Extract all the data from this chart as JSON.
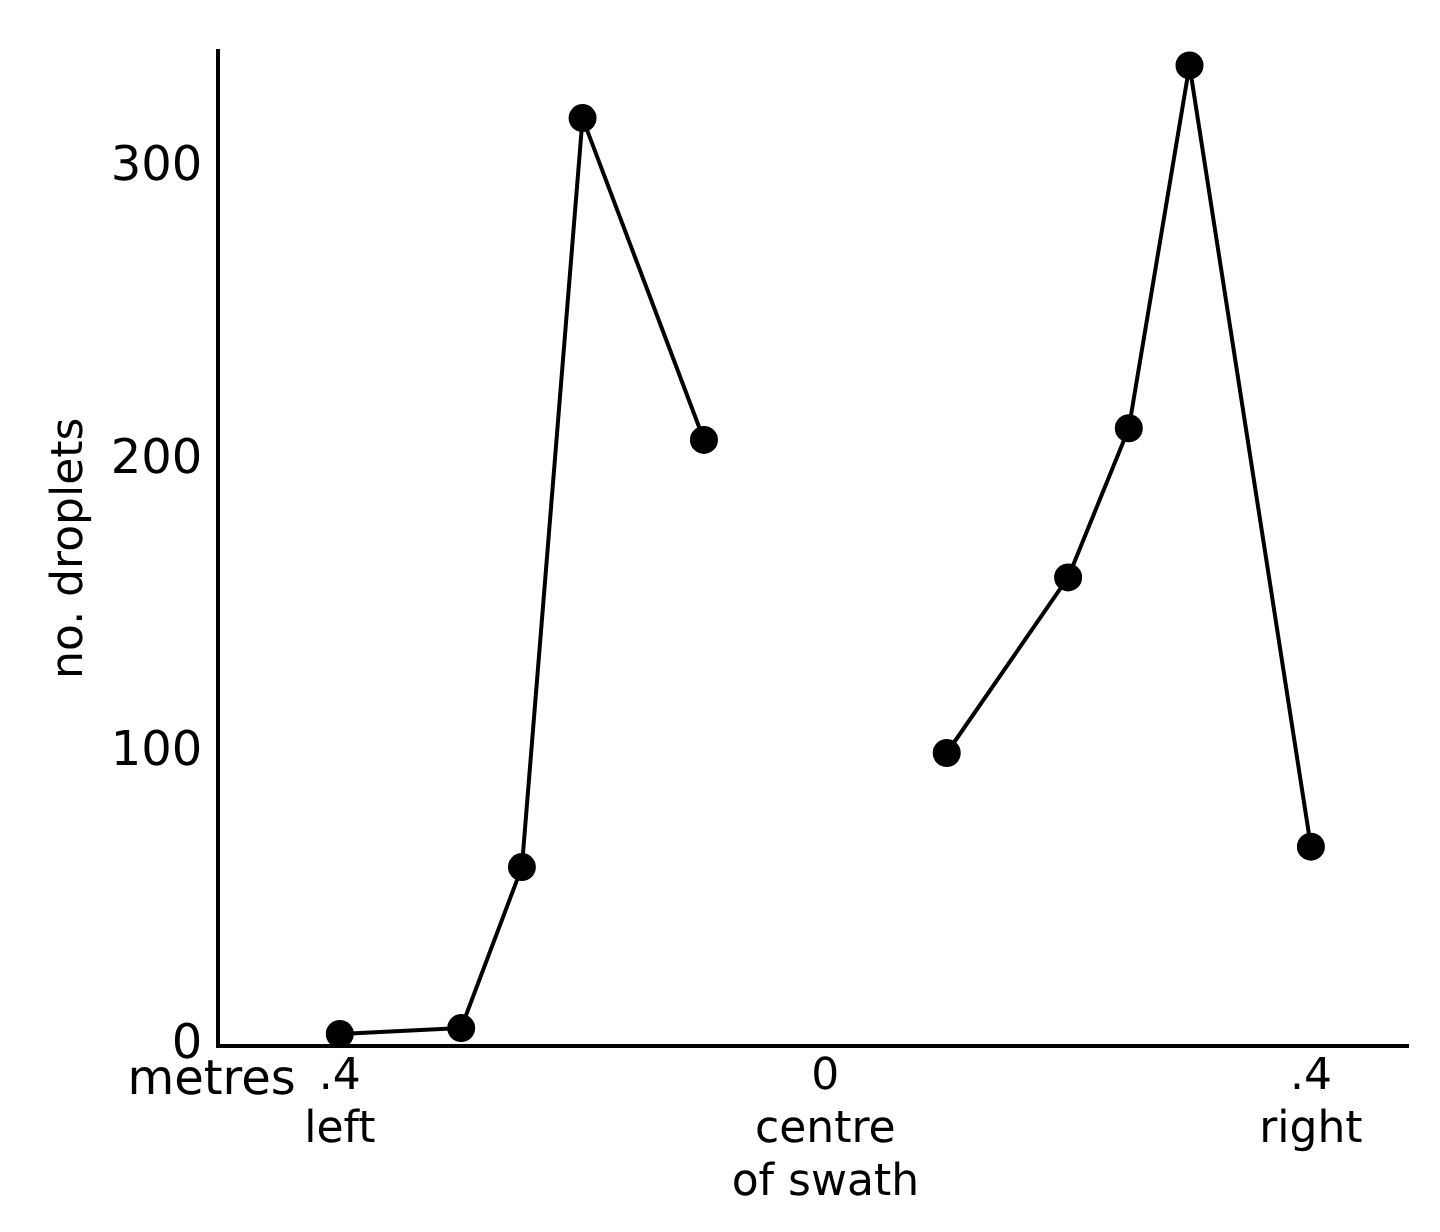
{
  "chart_data": {
    "type": "line",
    "xlabel": "metres",
    "ylabel": "no. droplets",
    "xlim": [
      -0.5,
      0.48
    ],
    "xticks": [
      {
        "value": -0.4,
        "label": ".4\nleft"
      },
      {
        "value": 0,
        "label": "0\ncentre\nof swath"
      },
      {
        "value": 0.4,
        "label": ".4\nright"
      }
    ],
    "ylim": [
      0,
      340
    ],
    "yticks": [
      0,
      100,
      200,
      300
    ],
    "grid": false,
    "legend": false,
    "marker": "circle",
    "line_style": "solid",
    "series": [
      {
        "color": "#000000",
        "x": [
          -0.4,
          -0.3,
          -0.25,
          -0.2,
          -0.1
        ],
        "values": [
          4,
          6,
          61,
          317,
          207
        ]
      },
      {
        "color": "#000000",
        "x": [
          0.1,
          0.2,
          0.25,
          0.3,
          0.4
        ],
        "values": [
          100,
          160,
          211,
          335,
          68
        ]
      }
    ]
  }
}
